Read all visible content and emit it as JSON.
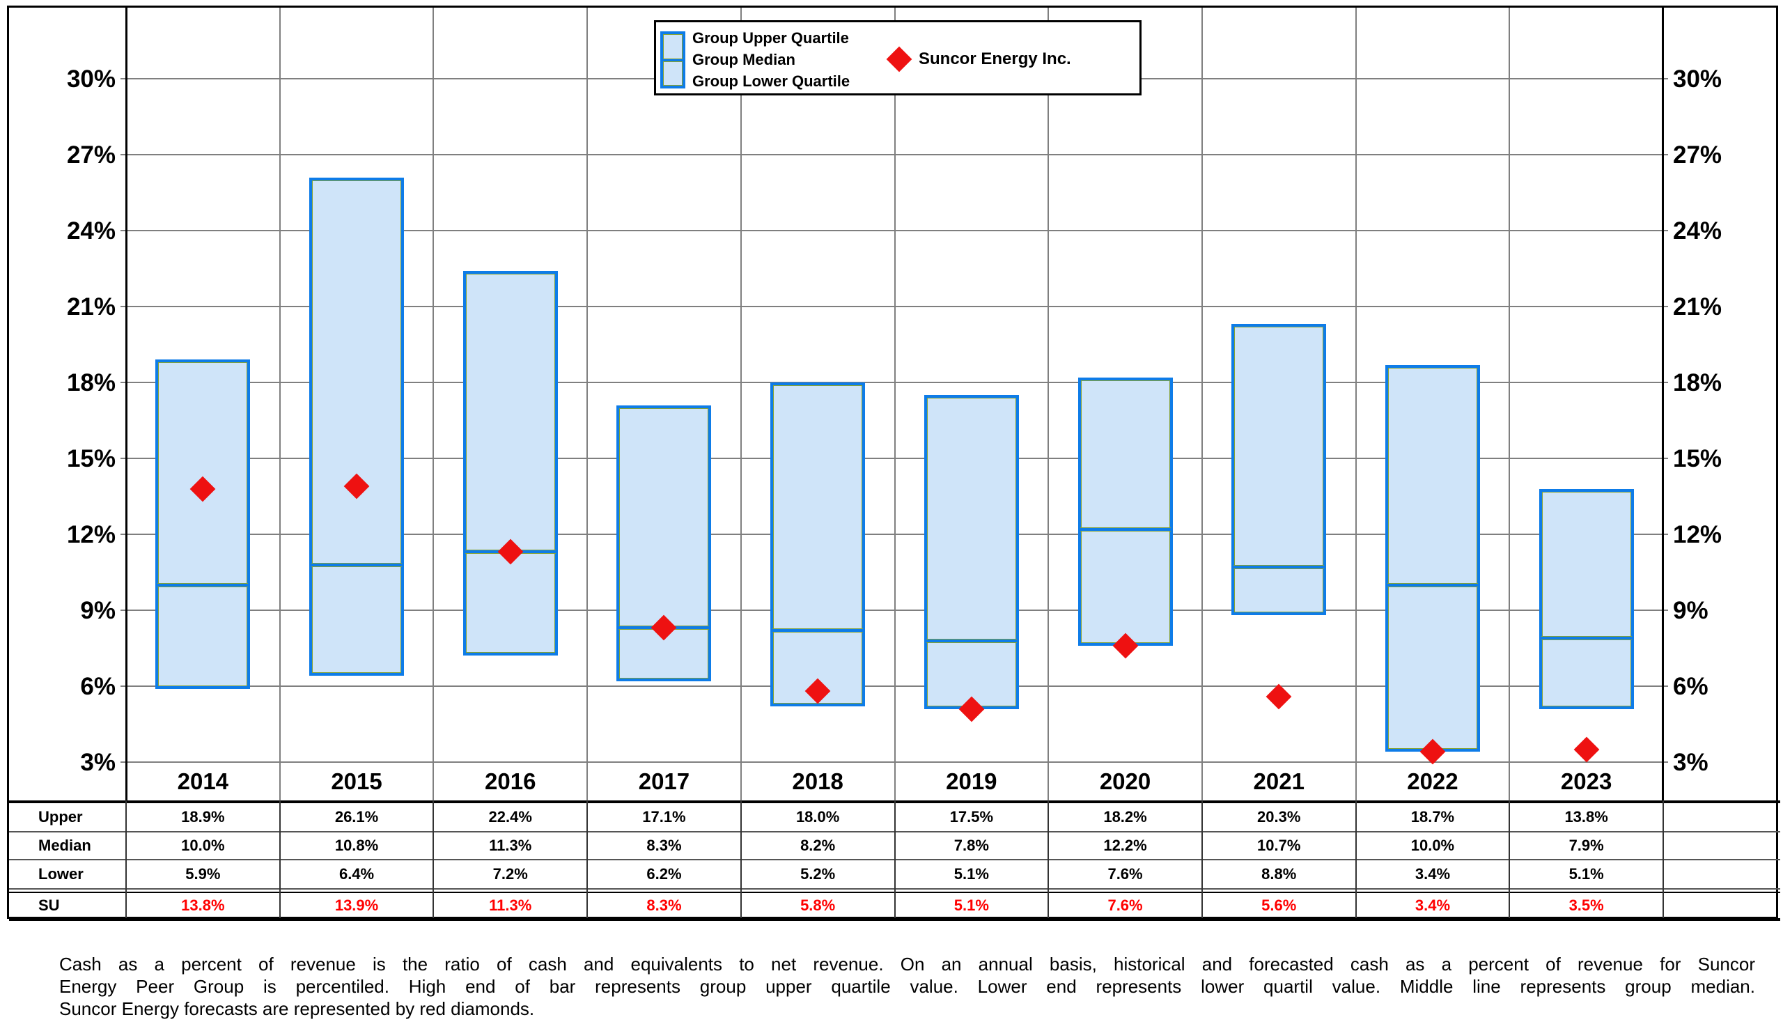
{
  "chart_data": {
    "type": "bar",
    "subtype": "floating-quartile-range-bars-with-diamond-markers",
    "categories": [
      "2014",
      "2015",
      "2016",
      "2017",
      "2018",
      "2019",
      "2020",
      "2021",
      "2022",
      "2023"
    ],
    "series": [
      {
        "name": "Group Upper Quartile",
        "values": [
          18.9,
          26.1,
          22.4,
          17.1,
          18.0,
          17.5,
          18.2,
          20.3,
          18.7,
          13.8
        ]
      },
      {
        "name": "Group Median",
        "values": [
          10.0,
          10.8,
          11.3,
          8.3,
          8.2,
          7.8,
          12.2,
          10.7,
          10.0,
          7.9
        ]
      },
      {
        "name": "Group Lower Quartile",
        "values": [
          5.9,
          6.4,
          7.2,
          6.2,
          5.2,
          5.1,
          7.6,
          8.8,
          3.4,
          5.1
        ]
      },
      {
        "name": "Suncor Energy Inc.",
        "marker": "red-diamond",
        "values": [
          13.8,
          13.9,
          11.3,
          8.3,
          5.8,
          5.1,
          7.6,
          5.6,
          3.4,
          3.5
        ]
      }
    ],
    "title": "",
    "xlabel": "",
    "ylabel": "",
    "ylim": [
      3,
      30
    ],
    "ytick_step": 3,
    "ytick_labels": [
      "3%",
      "6%",
      "9%",
      "12%",
      "15%",
      "18%",
      "21%",
      "24%",
      "27%",
      "30%"
    ],
    "y_axis_sides": "both",
    "grid": true,
    "legend_position": "top-center"
  },
  "legend": {
    "upper_label": "Group Upper Quartile",
    "median_label": "Group Median",
    "lower_label": "Group Lower Quartile",
    "suncor_label": "Suncor Energy Inc."
  },
  "table": {
    "rows": [
      {
        "label": "Upper",
        "highlight": "black",
        "values": [
          "18.9%",
          "26.1%",
          "22.4%",
          "17.1%",
          "18.0%",
          "17.5%",
          "18.2%",
          "20.3%",
          "18.7%",
          "13.8%"
        ]
      },
      {
        "label": "Median",
        "highlight": "black",
        "values": [
          "10.0%",
          "10.8%",
          "11.3%",
          "8.3%",
          "8.2%",
          "7.8%",
          "12.2%",
          "10.7%",
          "10.0%",
          "7.9%"
        ]
      },
      {
        "label": "Lower",
        "highlight": "black",
        "values": [
          "5.9%",
          "6.4%",
          "7.2%",
          "6.2%",
          "5.2%",
          "5.1%",
          "7.6%",
          "8.8%",
          "3.4%",
          "5.1%"
        ]
      },
      {
        "label": "SU",
        "highlight": "red",
        "values": [
          "13.8%",
          "13.9%",
          "11.3%",
          "8.3%",
          "5.8%",
          "5.1%",
          "7.6%",
          "5.6%",
          "3.4%",
          "3.5%"
        ]
      }
    ]
  },
  "footnote": {
    "lines": [
      "Cash as a percent of revenue is the ratio of cash and equivalents to net revenue.  On an annual basis, historical and forecasted cash as a percent of revenue for Suncor",
      "Energy Peer Group is percentiled.  High end of bar represents group upper quartile value.  Lower end represents lower quartil value.  Middle line represents group median.",
      "Suncor Energy forecasts are represented by red diamonds."
    ]
  },
  "colors": {
    "bar_fill": "#cfe4f9",
    "bar_border": "#0e7ce8",
    "accent_olive": "#85a234",
    "diamond_red": "#ee1111",
    "table_su_red": "#ff0000",
    "gridline_gray": "#7f7f7f",
    "line_black": "#000000"
  }
}
